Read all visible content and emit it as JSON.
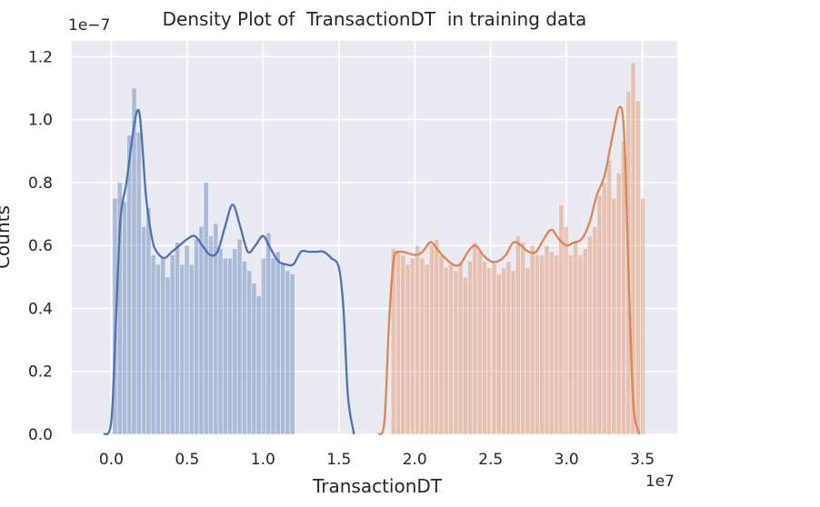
{
  "chart_data": {
    "type": "bar",
    "title": "Density Plot of  TransactionDT  in training data",
    "xlabel": "TransactionDT",
    "ylabel": "Counts",
    "x_scale_label": "1e7",
    "y_scale_label": "1e−7",
    "xlim": [
      -0.26,
      3.73
    ],
    "ylim": [
      0.0,
      1.25
    ],
    "xticks": [
      0.0,
      0.5,
      1.0,
      1.5,
      2.0,
      2.5,
      3.0,
      3.5
    ],
    "xtick_labels": [
      "0.0",
      "0.5",
      "1.0",
      "1.5",
      "2.0",
      "2.5",
      "3.0",
      "3.5"
    ],
    "yticks": [
      0.0,
      0.2,
      0.4,
      0.6,
      0.8,
      1.0,
      1.2
    ],
    "ytick_labels": [
      "0.0",
      "0.2",
      "0.4",
      "0.6",
      "0.8",
      "1.0",
      "1.2"
    ],
    "grid": true,
    "background": "#eaeaf2",
    "series": [
      {
        "color": "#4c72b0",
        "hist_start": 0.0086,
        "bin_width": 0.0316,
        "hist_values": [
          0.75,
          0.8,
          0.74,
          0.95,
          1.1,
          0.96,
          0.66,
          0.72,
          0.57,
          0.54,
          0.56,
          0.5,
          0.57,
          0.61,
          0.54,
          0.6,
          0.54,
          0.62,
          0.66,
          0.8,
          0.63,
          0.67,
          0.59,
          0.56,
          0.56,
          0.59,
          0.62,
          0.55,
          0.52,
          0.48,
          0.44,
          0.56,
          0.64,
          0.56,
          0.58,
          0.54,
          0.52,
          0.51
        ],
        "kde_x": [
          -0.05,
          0.0,
          0.03,
          0.06,
          0.1,
          0.15,
          0.18,
          0.2,
          0.23,
          0.27,
          0.3,
          0.35,
          0.4,
          0.45,
          0.5,
          0.55,
          0.6,
          0.65,
          0.7,
          0.75,
          0.8,
          0.85,
          0.9,
          0.95,
          1.0,
          1.05,
          1.1,
          1.15,
          1.2,
          1.25,
          1.3,
          1.35,
          1.4,
          1.45,
          1.5,
          1.53,
          1.56,
          1.6
        ],
        "kde_y": [
          0.0,
          0.04,
          0.35,
          0.68,
          0.8,
          0.98,
          1.03,
          0.95,
          0.75,
          0.62,
          0.58,
          0.56,
          0.58,
          0.6,
          0.62,
          0.63,
          0.6,
          0.57,
          0.58,
          0.66,
          0.73,
          0.66,
          0.58,
          0.6,
          0.63,
          0.59,
          0.55,
          0.54,
          0.54,
          0.58,
          0.58,
          0.58,
          0.58,
          0.56,
          0.53,
          0.4,
          0.12,
          0.0
        ]
      },
      {
        "color": "#dd8452",
        "hist_start": 1.8435,
        "bin_width": 0.0316,
        "hist_values": [
          0.59,
          0.58,
          0.57,
          0.54,
          0.56,
          0.6,
          0.56,
          0.54,
          0.6,
          0.62,
          0.57,
          0.53,
          0.54,
          0.52,
          0.55,
          0.5,
          0.55,
          0.61,
          0.58,
          0.55,
          0.53,
          0.55,
          0.51,
          0.53,
          0.55,
          0.52,
          0.63,
          0.61,
          0.53,
          0.6,
          0.57,
          0.57,
          0.6,
          0.58,
          0.57,
          0.73,
          0.66,
          0.57,
          0.61,
          0.57,
          0.59,
          0.63,
          0.66,
          0.76,
          0.8,
          0.87,
          0.75,
          0.83,
          0.93,
          1.09,
          1.18,
          1.06,
          0.75
        ],
        "kde_x": [
          1.76,
          1.8,
          1.83,
          1.86,
          1.9,
          2.0,
          2.05,
          2.1,
          2.13,
          2.18,
          2.25,
          2.3,
          2.35,
          2.4,
          2.45,
          2.5,
          2.55,
          2.6,
          2.65,
          2.7,
          2.75,
          2.8,
          2.85,
          2.9,
          2.95,
          3.0,
          3.05,
          3.1,
          3.15,
          3.2,
          3.25,
          3.3,
          3.35,
          3.38,
          3.41,
          3.44,
          3.48
        ],
        "kde_y": [
          0.0,
          0.04,
          0.35,
          0.55,
          0.58,
          0.57,
          0.58,
          0.61,
          0.6,
          0.57,
          0.54,
          0.54,
          0.58,
          0.6,
          0.57,
          0.55,
          0.55,
          0.57,
          0.61,
          0.6,
          0.58,
          0.58,
          0.62,
          0.65,
          0.62,
          0.6,
          0.61,
          0.62,
          0.67,
          0.76,
          0.82,
          0.94,
          1.04,
          0.95,
          0.5,
          0.1,
          0.0
        ]
      }
    ]
  }
}
